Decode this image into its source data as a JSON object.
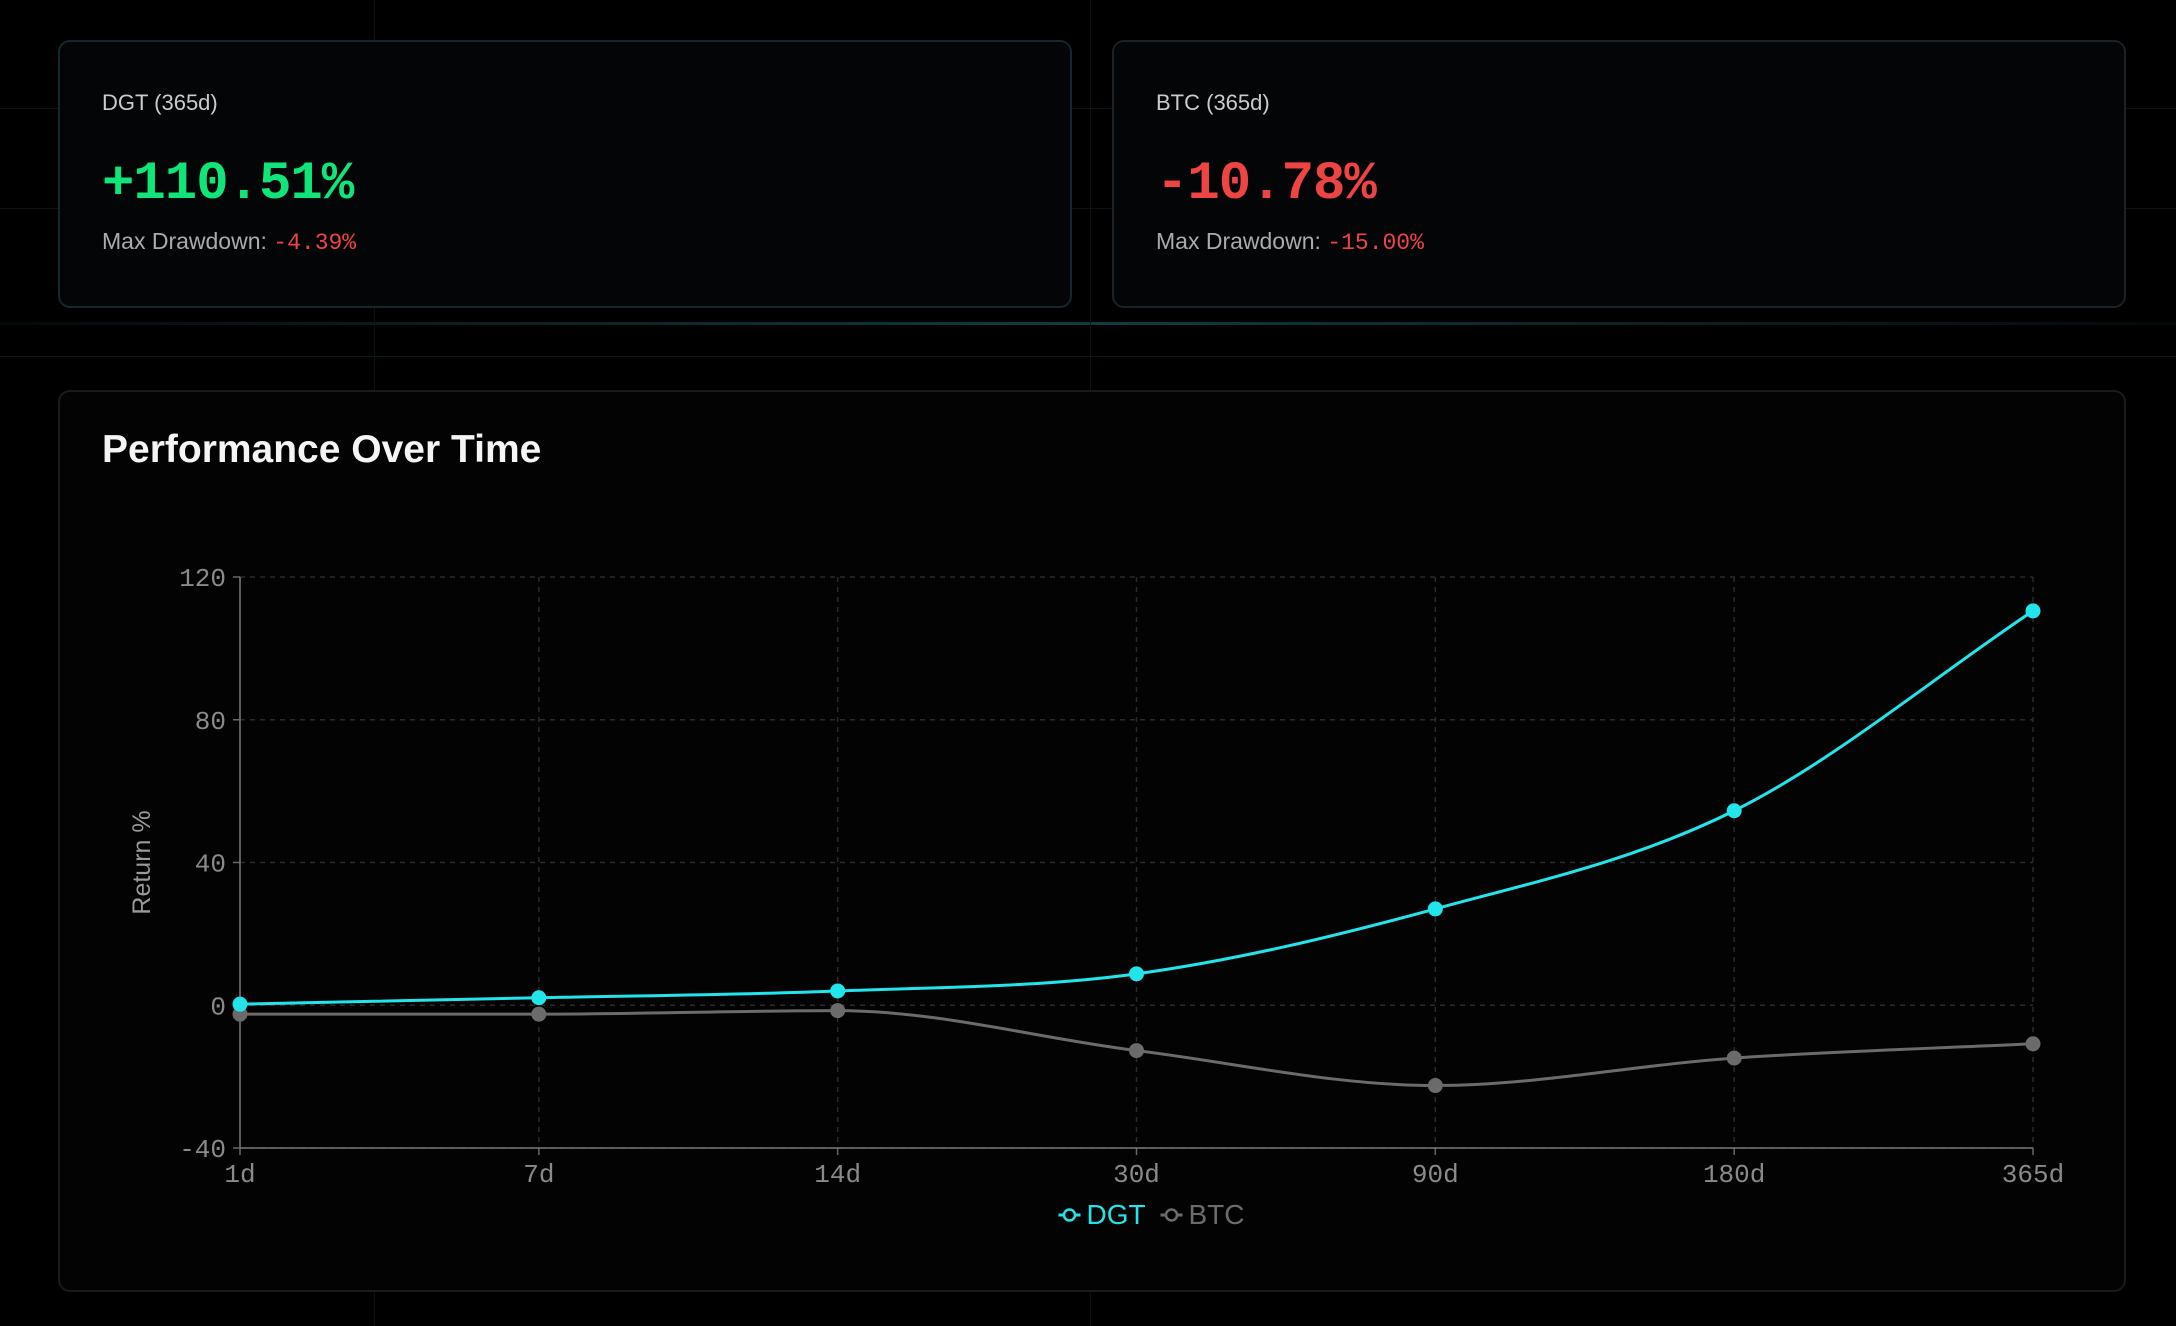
{
  "cards": [
    {
      "label": "DGT (365d)",
      "value": "+110.51%",
      "value_color": "#10e57a",
      "drawdown_label": "Max Drawdown:",
      "drawdown_value": "-4.39%"
    },
    {
      "label": "BTC (365d)",
      "value": "-10.78%",
      "value_color": "#ef4444",
      "drawdown_label": "Max Drawdown:",
      "drawdown_value": "-15.00%"
    }
  ],
  "chart_data": {
    "type": "line",
    "title": "Performance Over Time",
    "xlabel": "",
    "ylabel": "Return %",
    "categories": [
      "1d",
      "7d",
      "14d",
      "30d",
      "90d",
      "180d",
      "365d"
    ],
    "ylim": [
      -40,
      120
    ],
    "yticks": [
      120,
      80,
      40,
      0,
      -40
    ],
    "grid": true,
    "legend_position": "bottom-center",
    "series": [
      {
        "name": "DGT",
        "color": "#22e5ec",
        "values": [
          0.3,
          2.1,
          4.0,
          8.8,
          27.0,
          54.5,
          110.5
        ]
      },
      {
        "name": "BTC",
        "color": "#6b6b6b",
        "values": [
          -2.5,
          -2.5,
          -1.5,
          -12.7,
          -22.5,
          -14.8,
          -10.8
        ]
      }
    ]
  }
}
